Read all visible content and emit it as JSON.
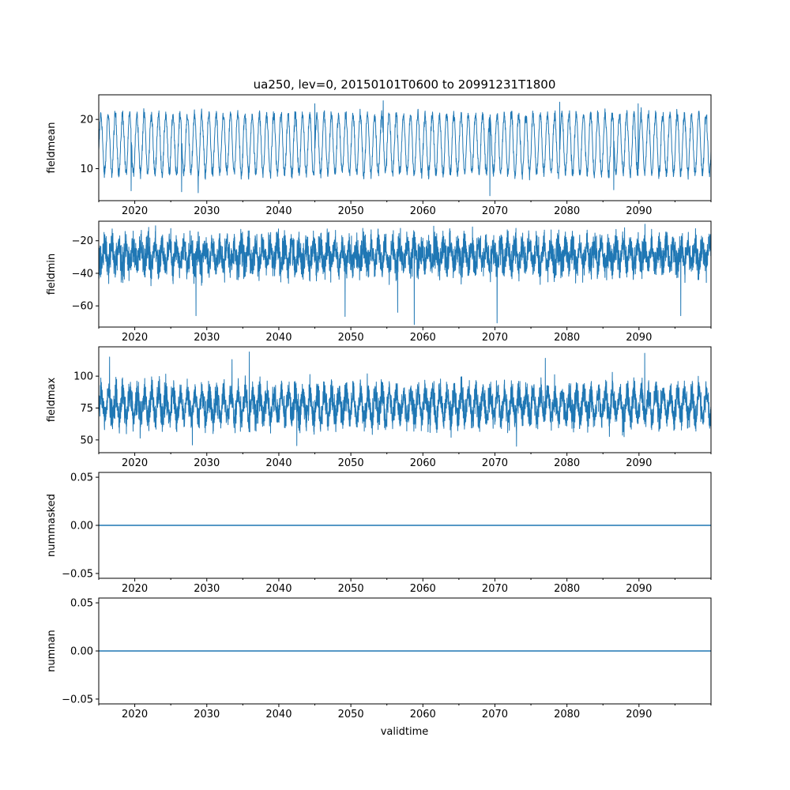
{
  "figure_title": "ua250, lev=0, 20150101T0600 to 20991231T1800",
  "x_axis_label": "validtime",
  "colors": {
    "series": "#1f77b4",
    "axes": "#000000",
    "background": "#ffffff"
  },
  "chart_data": [
    {
      "type": "line",
      "title": "ua250, lev=0, 20150101T0600 to 20991231T1800",
      "ylabel": "fieldmean",
      "xlabel": "",
      "xlim": [
        2015.0,
        2100.0
      ],
      "x_ticks": [
        2020,
        2030,
        2040,
        2050,
        2060,
        2070,
        2080,
        2090
      ],
      "x_tick_labels": [
        "2020",
        "2030",
        "2040",
        "2050",
        "2060",
        "2070",
        "2080",
        "2090"
      ],
      "ylim": [
        3.5,
        25.0
      ],
      "y_ticks": [
        10,
        20
      ],
      "y_tick_labels": [
        "10",
        "20"
      ],
      "series": [
        {
          "name": "fieldmean",
          "pattern": "seasonal",
          "start": 2015.0,
          "end": 2100.0,
          "samples_per_year": 36,
          "center": 15.0,
          "seasonal_amplitude": 6.0,
          "noise": 1.2,
          "phase": 0.05,
          "low_extremes": [
            [
              2019.5,
              5.5
            ],
            [
              2026.5,
              5.3
            ],
            [
              2028.8,
              5.1
            ],
            [
              2069.3,
              4.5
            ],
            [
              2086.5,
              5.7
            ]
          ],
          "high_extremes": [
            [
              2054.5,
              23.8
            ],
            [
              2045.0,
              23.2
            ],
            [
              2079.0,
              23.5
            ],
            [
              2089.9,
              23.2
            ]
          ]
        }
      ],
      "grid": false
    },
    {
      "type": "line",
      "title": "",
      "ylabel": "fieldmin",
      "xlabel": "",
      "xlim": [
        2015.0,
        2100.0
      ],
      "x_ticks": [
        2020,
        2030,
        2040,
        2050,
        2060,
        2070,
        2080,
        2090
      ],
      "x_tick_labels": [
        "2020",
        "2030",
        "2040",
        "2050",
        "2060",
        "2070",
        "2080",
        "2090"
      ],
      "ylim": [
        -73.0,
        -8.0
      ],
      "y_ticks": [
        -20,
        -40,
        -60
      ],
      "y_tick_labels": [
        "−20",
        "−40",
        "−60"
      ],
      "series": [
        {
          "name": "fieldmin",
          "pattern": "noisy",
          "start": 2015.0,
          "end": 2100.0,
          "samples_per_year": 60,
          "center": -29.0,
          "seasonal_amplitude": 6.0,
          "noise": 7.5,
          "phase": 0.55,
          "low_extremes": [
            [
              2028.5,
              -66.0
            ],
            [
              2058.8,
              -71.5
            ],
            [
              2070.3,
              -70.5
            ],
            [
              2049.2,
              -66.5
            ],
            [
              2056.5,
              -64.0
            ],
            [
              2095.8,
              -66.0
            ]
          ],
          "high_extremes": [
            [
              2061.5,
              -11.0
            ],
            [
              2025.0,
              -12.5
            ],
            [
              2088.0,
              -12.0
            ]
          ]
        }
      ],
      "grid": false
    },
    {
      "type": "line",
      "title": "",
      "ylabel": "fieldmax",
      "xlabel": "",
      "xlim": [
        2015.0,
        2100.0
      ],
      "x_ticks": [
        2020,
        2030,
        2040,
        2050,
        2060,
        2070,
        2080,
        2090
      ],
      "x_tick_labels": [
        "2020",
        "2030",
        "2040",
        "2050",
        "2060",
        "2070",
        "2080",
        "2090"
      ],
      "ylim": [
        40.0,
        123.0
      ],
      "y_ticks": [
        50,
        75,
        100
      ],
      "y_tick_labels": [
        "50",
        "75",
        "100"
      ],
      "series": [
        {
          "name": "fieldmax",
          "pattern": "noisy",
          "start": 2015.0,
          "end": 2100.0,
          "samples_per_year": 60,
          "center": 77.0,
          "seasonal_amplitude": 10.0,
          "noise": 9.0,
          "phase": 0.1,
          "low_extremes": [
            [
              2028.0,
              46.0
            ],
            [
              2073.0,
              45.0
            ],
            [
              2042.5,
              45.5
            ]
          ],
          "high_extremes": [
            [
              2035.9,
              119.0
            ],
            [
              2090.8,
              118.0
            ],
            [
              2033.5,
              113.0
            ],
            [
              2016.5,
              115.0
            ],
            [
              2077.0,
              114.0
            ]
          ]
        }
      ],
      "grid": false
    },
    {
      "type": "line",
      "title": "",
      "ylabel": "nummasked",
      "xlabel": "",
      "xlim": [
        2015.0,
        2100.0
      ],
      "x_ticks": [
        2020,
        2030,
        2040,
        2050,
        2060,
        2070,
        2080,
        2090
      ],
      "x_tick_labels": [
        "2020",
        "2030",
        "2040",
        "2050",
        "2060",
        "2070",
        "2080",
        "2090"
      ],
      "ylim": [
        -0.055,
        0.055
      ],
      "y_ticks": [
        0.05,
        0.0,
        -0.05
      ],
      "y_tick_labels": [
        "0.05",
        "0.00",
        "−0.05"
      ],
      "series": [
        {
          "name": "nummasked",
          "pattern": "constant",
          "start": 2015.0,
          "end": 2100.0,
          "value": 0.0
        }
      ],
      "grid": false
    },
    {
      "type": "line",
      "title": "",
      "ylabel": "numnan",
      "xlabel": "validtime",
      "xlim": [
        2015.0,
        2100.0
      ],
      "x_ticks": [
        2020,
        2030,
        2040,
        2050,
        2060,
        2070,
        2080,
        2090
      ],
      "x_tick_labels": [
        "2020",
        "2030",
        "2040",
        "2050",
        "2060",
        "2070",
        "2080",
        "2090"
      ],
      "ylim": [
        -0.055,
        0.055
      ],
      "y_ticks": [
        0.05,
        0.0,
        -0.05
      ],
      "y_tick_labels": [
        "0.05",
        "0.00",
        "−0.05"
      ],
      "series": [
        {
          "name": "numnan",
          "pattern": "constant",
          "start": 2015.0,
          "end": 2100.0,
          "value": 0.0
        }
      ],
      "grid": false
    }
  ]
}
